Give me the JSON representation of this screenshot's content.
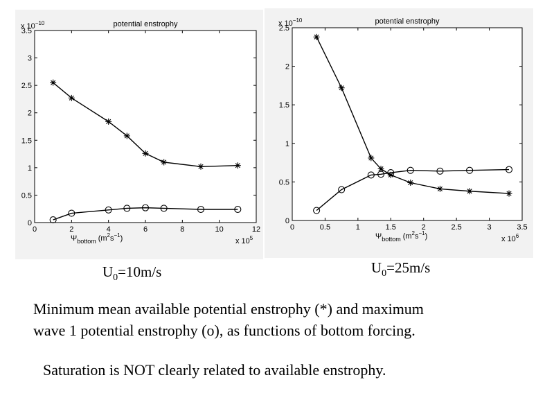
{
  "chart_data": [
    {
      "type": "line",
      "title": "potential enstrophy",
      "y_exponent_label": "x 10",
      "y_exponent_power": "−10",
      "x_exponent_label": "x 10",
      "x_exponent_power": "5",
      "xlabel_sym": "Ψ",
      "xlabel_sub": "bottom",
      "xlabel_units_pre": "(m",
      "xlabel_units_p1": "2",
      "xlabel_units_mid": "s",
      "xlabel_units_p2": "−1",
      "xlabel_units_post": ")",
      "xlim": [
        0,
        12
      ],
      "ylim": [
        0,
        3.5
      ],
      "xticks": [
        0,
        2,
        4,
        6,
        8,
        10,
        12
      ],
      "xtick_labels": [
        "0",
        "2",
        "4",
        "6",
        "8",
        "10",
        "12"
      ],
      "yticks": [
        0,
        0.5,
        1,
        1.5,
        2,
        2.5,
        3,
        3.5
      ],
      "ytick_labels": [
        "0",
        "0.5",
        "1",
        "1.5",
        "2",
        "2.5",
        "3",
        "3.5"
      ],
      "grid": false,
      "series": [
        {
          "marker": "star",
          "x": [
            1,
            2,
            4,
            5,
            6,
            7,
            9,
            11
          ],
          "y": [
            2.55,
            2.27,
            1.84,
            1.58,
            1.26,
            1.1,
            1.02,
            1.04
          ]
        },
        {
          "marker": "circle",
          "x": [
            1,
            2,
            4,
            5,
            6,
            7,
            9,
            11
          ],
          "y": [
            0.05,
            0.17,
            0.23,
            0.26,
            0.27,
            0.26,
            0.24,
            0.24
          ]
        }
      ],
      "caption_u": "U",
      "caption_sub": "0",
      "caption_rest": "=10m/s"
    },
    {
      "type": "line",
      "title": "potential enstrophy",
      "y_exponent_label": "x 10",
      "y_exponent_power": "−10",
      "x_exponent_label": "x 10",
      "x_exponent_power": "6",
      "xlabel_sym": "Ψ",
      "xlabel_sub": "bottom",
      "xlabel_units_pre": "(m",
      "xlabel_units_p1": "2",
      "xlabel_units_mid": "s",
      "xlabel_units_p2": "−1",
      "xlabel_units_post": ")",
      "xlim": [
        0,
        3.5
      ],
      "ylim": [
        0,
        2.5
      ],
      "xticks": [
        0,
        0.5,
        1,
        1.5,
        2,
        2.5,
        3,
        3.5
      ],
      "xtick_labels": [
        "0",
        "0.5",
        "1",
        "1.5",
        "2",
        "2.5",
        "3",
        "3.5"
      ],
      "yticks": [
        0,
        0.5,
        1,
        1.5,
        2,
        2.5
      ],
      "ytick_labels": [
        "0",
        "0.5",
        "1",
        "1.5",
        "2",
        "2.5"
      ],
      "grid": false,
      "series": [
        {
          "marker": "star",
          "x": [
            0.37,
            0.75,
            1.2,
            1.35,
            1.5,
            1.8,
            2.25,
            2.7,
            3.3
          ],
          "y": [
            2.38,
            1.72,
            0.81,
            0.67,
            0.59,
            0.49,
            0.41,
            0.38,
            0.35
          ]
        },
        {
          "marker": "circle",
          "x": [
            0.37,
            0.75,
            1.2,
            1.35,
            1.5,
            1.8,
            2.25,
            2.7,
            3.3
          ],
          "y": [
            0.13,
            0.4,
            0.59,
            0.6,
            0.62,
            0.65,
            0.64,
            0.65,
            0.66
          ]
        }
      ],
      "caption_u": "U",
      "caption_sub": "0",
      "caption_rest": "=25m/s"
    }
  ],
  "text": {
    "description_line1": "Minimum mean available potential enstrophy (*) and maximum",
    "description_line2": "wave 1 potential enstrophy (o), as functions of bottom forcing.",
    "note": "Saturation is NOT clearly related to available enstrophy."
  }
}
